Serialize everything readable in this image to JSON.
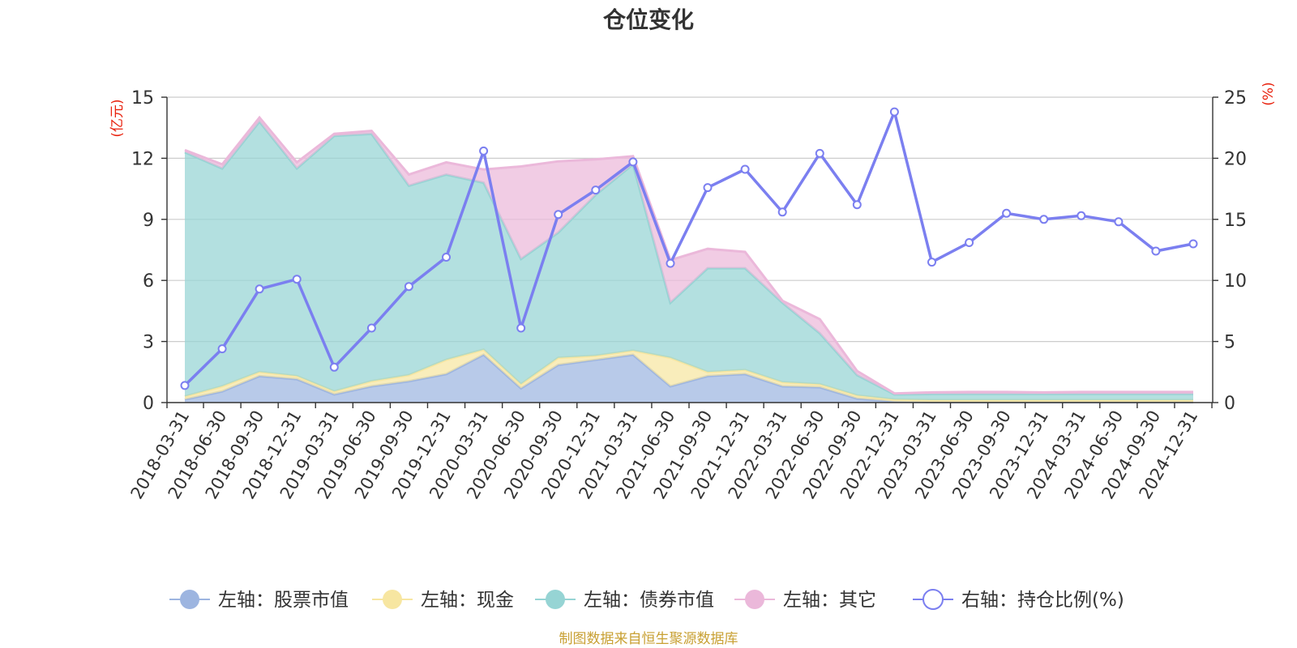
{
  "chart_data": {
    "type": "area+line",
    "title": "仓位变化",
    "left_axis_unit": "(亿元)",
    "right_axis_unit": "(%)",
    "left_axis": {
      "min": 0,
      "max": 15,
      "ticks": [
        0,
        3,
        6,
        9,
        12,
        15
      ]
    },
    "right_axis": {
      "min": 0,
      "max": 25,
      "ticks": [
        0,
        5,
        10,
        15,
        20,
        25
      ]
    },
    "grid": true,
    "legend_position": "bottom",
    "categories": [
      "2018-03-31",
      "2018-06-30",
      "2018-09-30",
      "2018-12-31",
      "2019-03-31",
      "2019-06-30",
      "2019-09-30",
      "2019-12-31",
      "2020-03-31",
      "2020-06-30",
      "2020-09-30",
      "2020-12-31",
      "2021-03-31",
      "2021-06-30",
      "2021-09-30",
      "2021-12-31",
      "2022-03-31",
      "2022-06-30",
      "2022-09-30",
      "2022-12-31",
      "2023-03-31",
      "2023-06-30",
      "2023-09-30",
      "2023-12-31",
      "2024-03-31",
      "2024-06-30",
      "2024-09-30",
      "2024-12-31"
    ],
    "series": [
      {
        "name": "左轴：股票市值",
        "axis": "left",
        "kind": "stacked-area",
        "color": "#9db5e0",
        "values": [
          0.15,
          0.55,
          1.3,
          1.15,
          0.4,
          0.8,
          1.05,
          1.4,
          2.35,
          0.7,
          1.85,
          2.1,
          2.35,
          0.8,
          1.3,
          1.4,
          0.8,
          0.75,
          0.2,
          0.05,
          0.02,
          0.02,
          0.02,
          0.02,
          0.02,
          0.02,
          0.02,
          0.02
        ]
      },
      {
        "name": "左轴：现金",
        "axis": "left",
        "kind": "stacked-area",
        "color": "#f7e6a1",
        "values": [
          0.15,
          0.25,
          0.2,
          0.15,
          0.15,
          0.25,
          0.3,
          0.7,
          0.25,
          0.2,
          0.35,
          0.2,
          0.2,
          1.4,
          0.2,
          0.2,
          0.2,
          0.15,
          0.15,
          0.1,
          0.1,
          0.1,
          0.1,
          0.1,
          0.1,
          0.1,
          0.1,
          0.1
        ]
      },
      {
        "name": "左轴：债券市值",
        "axis": "left",
        "kind": "stacked-area",
        "color": "#96d4d4",
        "values": [
          12.0,
          10.7,
          12.3,
          10.2,
          12.55,
          12.15,
          9.3,
          9.1,
          8.2,
          6.15,
          6.15,
          7.9,
          9.15,
          2.7,
          5.1,
          5.0,
          3.9,
          2.5,
          1.0,
          0.25,
          0.3,
          0.3,
          0.3,
          0.3,
          0.3,
          0.3,
          0.3,
          0.3
        ]
      },
      {
        "name": "左轴：其它",
        "axis": "left",
        "kind": "stacked-area",
        "color": "#ebb8da",
        "values": [
          0.1,
          0.2,
          0.2,
          0.3,
          0.1,
          0.15,
          0.55,
          0.6,
          0.65,
          4.55,
          3.5,
          1.75,
          0.4,
          2.1,
          0.95,
          0.8,
          0.1,
          0.7,
          0.2,
          0.05,
          0.08,
          0.1,
          0.1,
          0.08,
          0.1,
          0.1,
          0.1,
          0.1
        ]
      },
      {
        "name": "右轴：持仓比例(%)",
        "axis": "right",
        "kind": "line",
        "color": "#7b7ff0",
        "values": [
          1.4,
          4.4,
          9.3,
          10.1,
          2.9,
          6.1,
          9.5,
          11.9,
          20.6,
          6.1,
          15.4,
          17.4,
          19.7,
          11.4,
          17.6,
          19.1,
          15.6,
          20.4,
          16.2,
          23.8,
          11.5,
          13.1,
          15.5,
          15.0,
          15.3,
          14.8,
          12.4,
          13.0
        ]
      }
    ]
  },
  "footer": {
    "source": "制图数据来自恒生聚源数据库"
  }
}
